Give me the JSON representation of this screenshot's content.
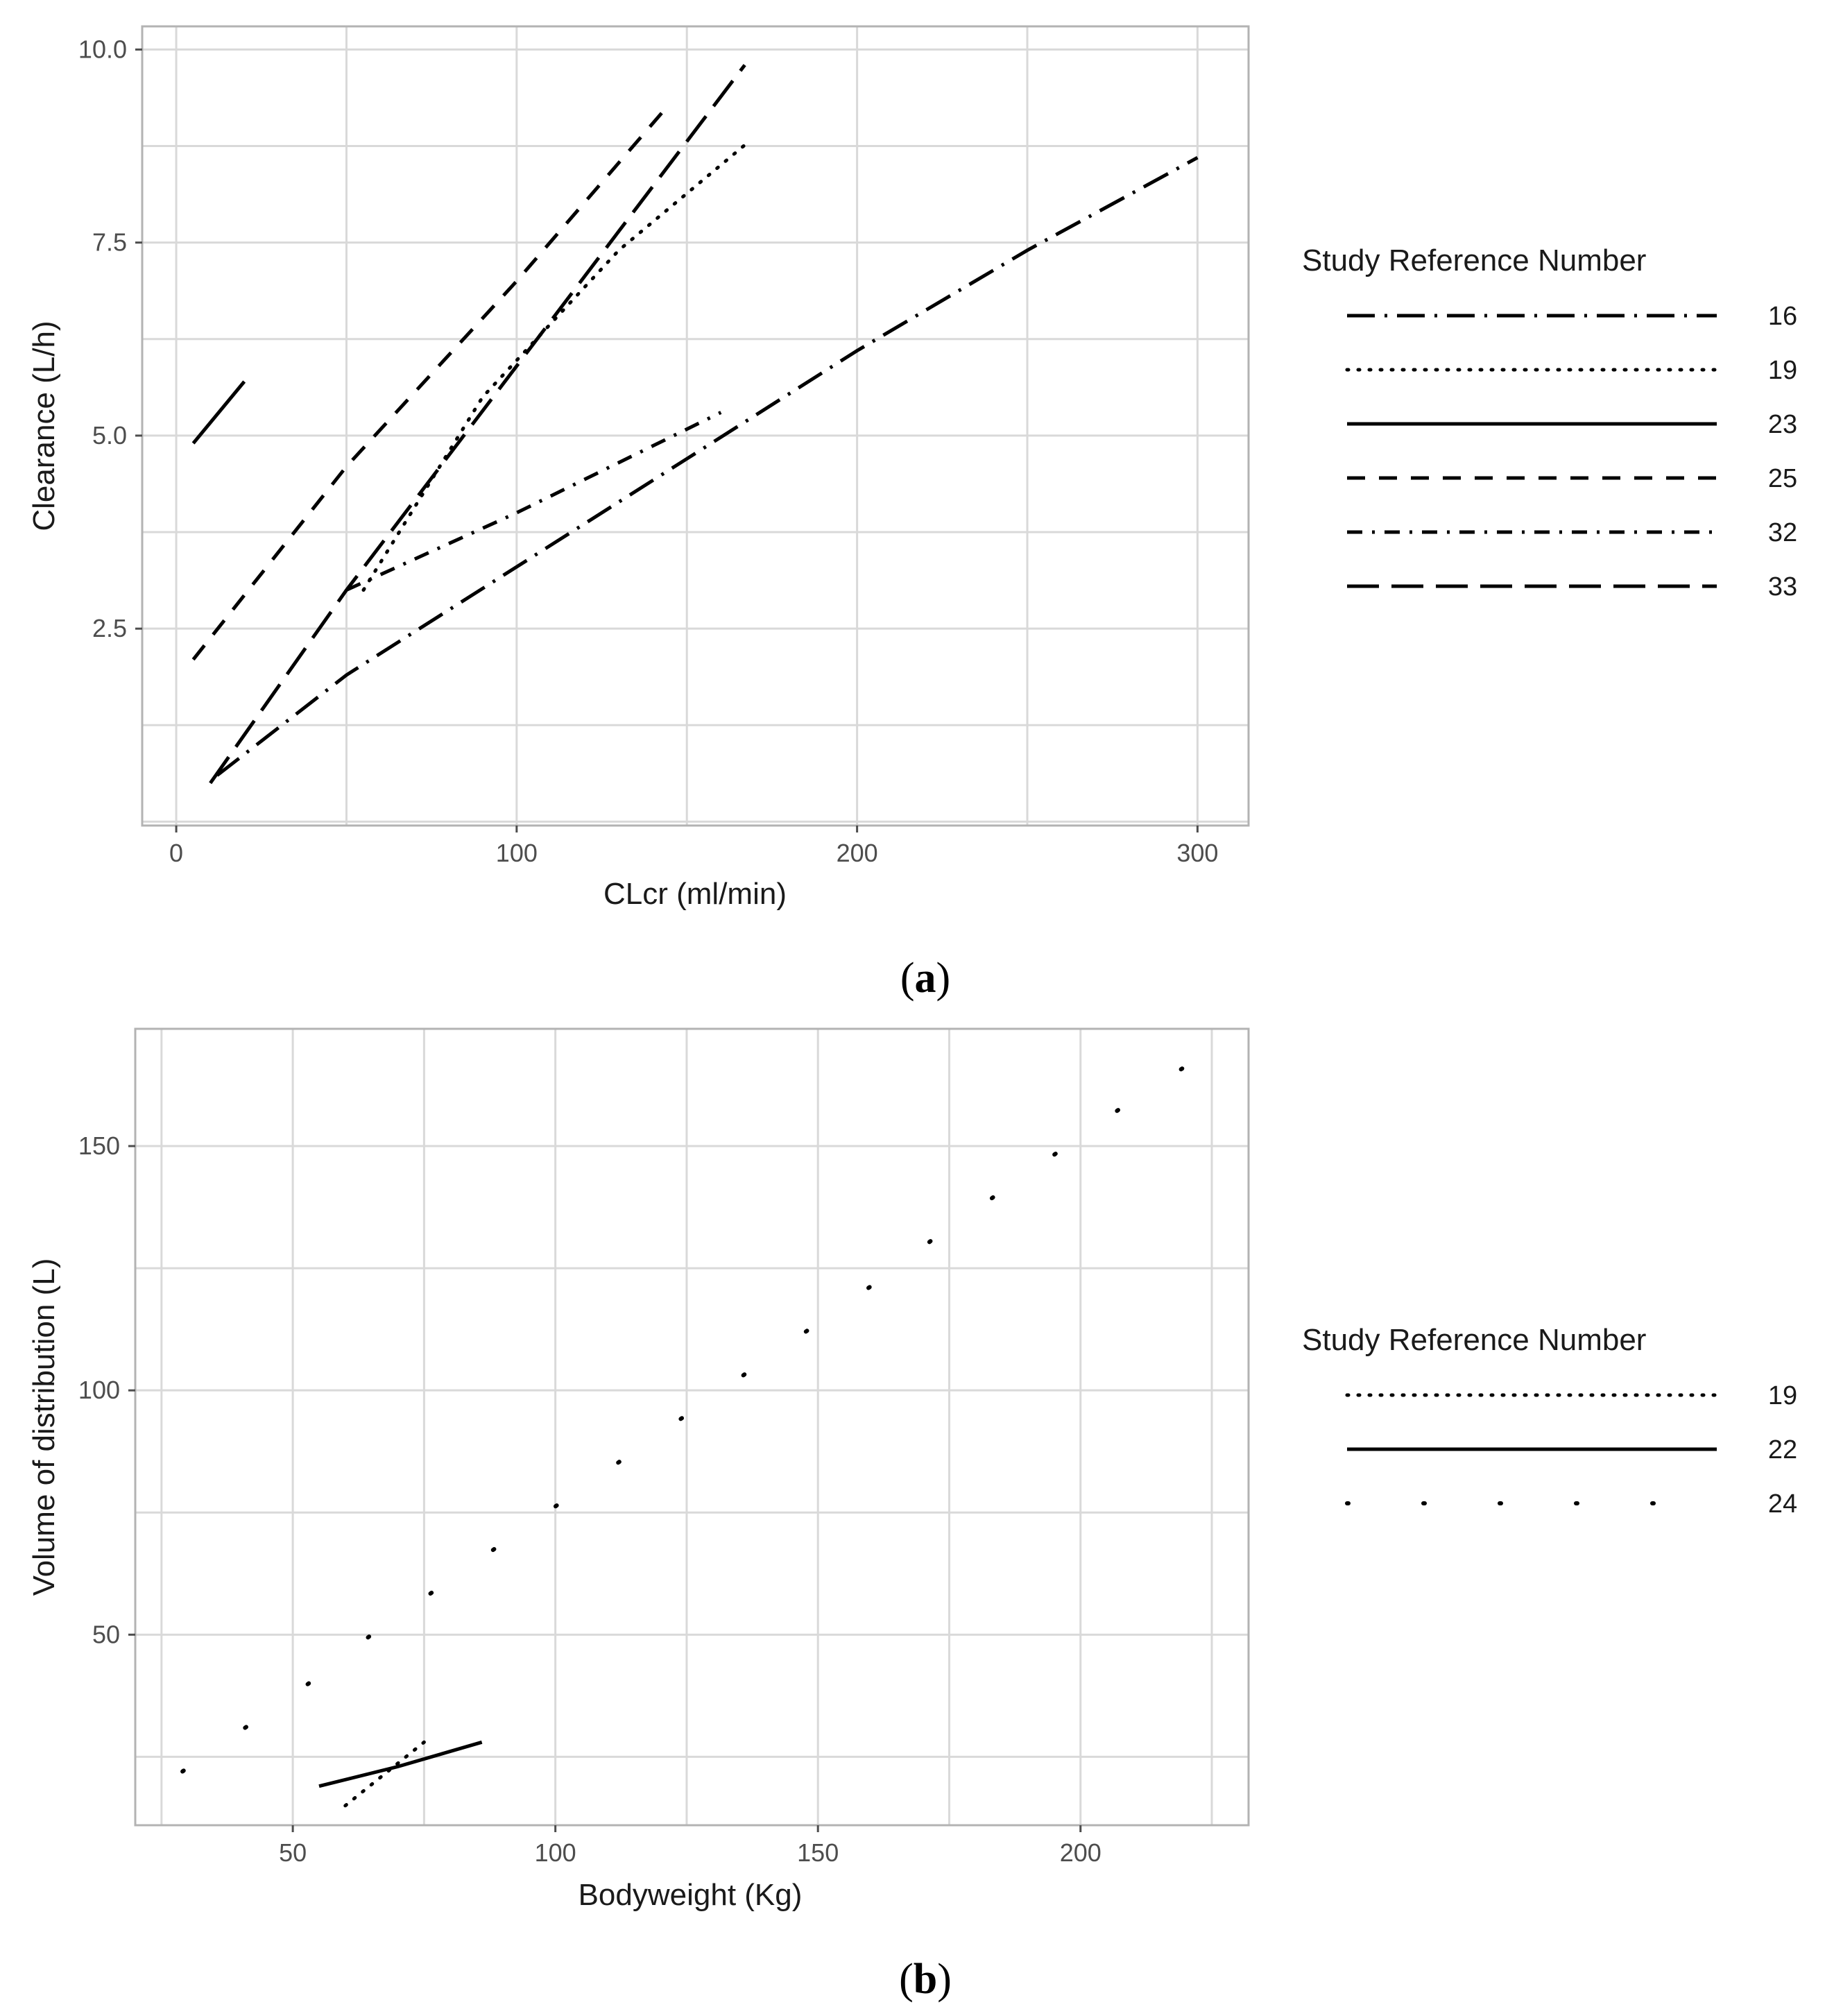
{
  "chart_data": [
    {
      "type": "line",
      "panel_label": "a",
      "xlabel": "CLcr (ml/min)",
      "ylabel": "Clearance (L/h)",
      "xlim": [
        -10,
        315
      ],
      "ylim": [
        -0.05,
        10.3
      ],
      "x_ticks": [
        0,
        100,
        200,
        300
      ],
      "y_ticks": [
        2.5,
        5.0,
        7.5,
        10.0
      ],
      "x_tick_labels": [
        "0",
        "100",
        "200",
        "300"
      ],
      "y_tick_labels": [
        "2.5",
        "5.0",
        "7.5",
        "10.0"
      ],
      "legend_title": "Study Reference Number",
      "legend_position": "right",
      "series": [
        {
          "name": "16",
          "linetype": "longdash-dot",
          "points": [
            [
              12,
              0.6
            ],
            [
              50,
              1.9
            ],
            [
              100,
              3.3
            ],
            [
              150,
              4.7
            ],
            [
              200,
              6.1
            ],
            [
              250,
              7.4
            ],
            [
              300,
              8.6
            ]
          ]
        },
        {
          "name": "19",
          "linetype": "dotted",
          "points": [
            [
              55,
              3.0
            ],
            [
              90,
              5.5
            ],
            [
              130,
              7.4
            ],
            [
              168,
              8.8
            ]
          ]
        },
        {
          "name": "23",
          "linetype": "solid",
          "points": [
            [
              5,
              4.9
            ],
            [
              20,
              5.7
            ]
          ]
        },
        {
          "name": "25",
          "linetype": "dashed",
          "points": [
            [
              5,
              2.1
            ],
            [
              50,
              4.6
            ],
            [
              100,
              7.0
            ],
            [
              145,
              9.3
            ]
          ]
        },
        {
          "name": "32",
          "linetype": "dash-dot",
          "points": [
            [
              50,
              3.0
            ],
            [
              100,
              4.0
            ],
            [
              160,
              5.3
            ]
          ]
        },
        {
          "name": "33",
          "linetype": "longdash",
          "points": [
            [
              10,
              0.5
            ],
            [
              50,
              3.0
            ],
            [
              100,
              5.9
            ],
            [
              167,
              9.8
            ]
          ]
        }
      ]
    },
    {
      "type": "line",
      "panel_label": "b",
      "xlabel": "Bodyweight (Kg)",
      "ylabel": "Volume of distribution (L)",
      "xlim": [
        20,
        232
      ],
      "ylim": [
        11,
        174
      ],
      "x_ticks": [
        50,
        100,
        150,
        200
      ],
      "y_ticks": [
        50,
        100,
        150
      ],
      "x_tick_labels": [
        "50",
        "100",
        "150",
        "200"
      ],
      "y_tick_labels": [
        "50",
        "100",
        "150"
      ],
      "legend_title": "Study Reference Number",
      "legend_position": "right",
      "series": [
        {
          "name": "19",
          "linetype": "dotted",
          "points": [
            [
              60,
              15
            ],
            [
              75,
              28
            ]
          ]
        },
        {
          "name": "22",
          "linetype": "solid",
          "points": [
            [
              55,
              19
            ],
            [
              70,
              23
            ],
            [
              86,
              28
            ]
          ]
        },
        {
          "name": "24",
          "linetype": "sparse-dotted",
          "points": [
            [
              29,
              22
            ],
            [
              41,
              31
            ],
            [
              53,
              40
            ],
            [
              65,
              50
            ],
            [
              77,
              59
            ],
            [
              89,
              68
            ],
            [
              101,
              77
            ],
            [
              113,
              86
            ],
            [
              125,
              95
            ],
            [
              137,
              104
            ],
            [
              149,
              113
            ],
            [
              161,
              122
            ],
            [
              172,
              131
            ],
            [
              184,
              140
            ],
            [
              196,
              149
            ],
            [
              208,
              158
            ],
            [
              221,
              167
            ]
          ]
        }
      ]
    }
  ]
}
